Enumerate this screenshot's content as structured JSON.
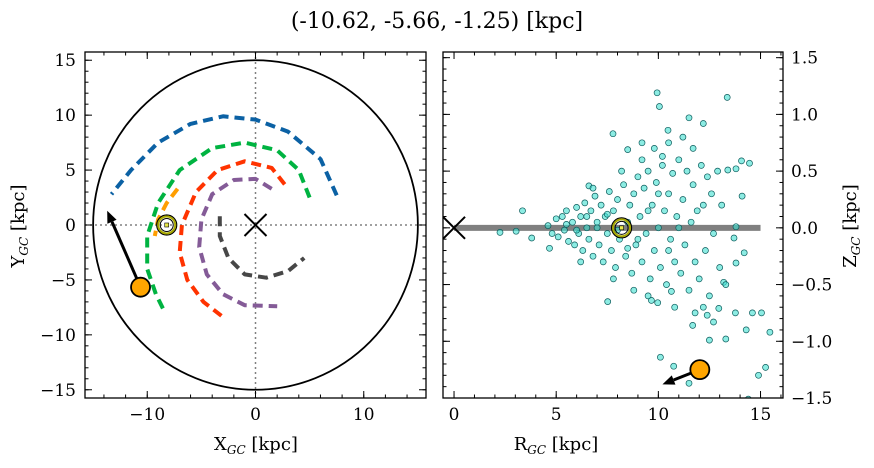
{
  "title": "(-10.62, -5.66, -1.25) [kpc]",
  "chart_data": [
    {
      "type": "line",
      "panel": "left",
      "xlabel": {
        "main": "X",
        "sub": "GC",
        "unit": " [kpc]"
      },
      "ylabel": {
        "main": "Y",
        "sub": "GC",
        "unit": " [kpc]"
      },
      "xlim": [
        -15.75,
        15.75
      ],
      "ylim": [
        -15.75,
        15.75
      ],
      "xticks": [
        -10,
        0,
        10
      ],
      "yticks": [
        -15,
        -10,
        -5,
        0,
        5,
        10,
        15
      ],
      "xtick_labels": [
        "−10",
        "0",
        "10"
      ],
      "ytick_labels": [
        "−15",
        "−10",
        "−5",
        "0",
        "5",
        "10",
        "15"
      ],
      "boundary_circle_radius": 15,
      "galactic_center": [
        0,
        0
      ],
      "sun": [
        -8.2,
        0
      ],
      "target": [
        -10.62,
        -5.66
      ],
      "velocity_arrow_tip": [
        -13.7,
        1.3
      ],
      "dashed_curves": [
        {
          "color": "#0b61a4",
          "points": [
            [
              7.5,
              2.7
            ],
            [
              6,
              6
            ],
            [
              3,
              8.5
            ],
            [
              0,
              9.6
            ],
            [
              -3,
              9.9
            ],
            [
              -6,
              9.2
            ],
            [
              -9,
              7.5
            ],
            [
              -11.5,
              5
            ],
            [
              -13.3,
              2.8
            ]
          ]
        },
        {
          "color": "#00b341",
          "points": [
            [
              5,
              2.5
            ],
            [
              4,
              5
            ],
            [
              2,
              6.8
            ],
            [
              -1,
              7.5
            ],
            [
              -4,
              7
            ],
            [
              -7,
              5
            ],
            [
              -9,
              2
            ],
            [
              -10,
              -1
            ],
            [
              -10,
              -4
            ],
            [
              -9.2,
              -6.3
            ],
            [
              -8.5,
              -7.7
            ]
          ]
        },
        {
          "color": "#ff9e00",
          "points": [
            [
              -7.2,
              3.3
            ],
            [
              -8.2,
              2
            ],
            [
              -9,
              0.5
            ],
            [
              -9.3,
              -1
            ]
          ]
        },
        {
          "color": "#ff3300",
          "points": [
            [
              2.7,
              3.7
            ],
            [
              1.5,
              5.2
            ],
            [
              -1,
              5.8
            ],
            [
              -3.5,
              5
            ],
            [
              -5.5,
              3
            ],
            [
              -6.8,
              0
            ],
            [
              -7,
              -2.5
            ],
            [
              -6.3,
              -5
            ],
            [
              -4.8,
              -7
            ],
            [
              -3.1,
              -8.3
            ]
          ]
        },
        {
          "color": "#845b97",
          "points": [
            [
              1.5,
              3.3
            ],
            [
              0,
              4.2
            ],
            [
              -2,
              4.1
            ],
            [
              -4,
              2.8
            ],
            [
              -5,
              0.5
            ],
            [
              -5.2,
              -2
            ],
            [
              -4.5,
              -4.5
            ],
            [
              -3,
              -6.3
            ],
            [
              -1,
              -7.3
            ],
            [
              2,
              -7.4
            ]
          ]
        },
        {
          "color": "#474747",
          "points": [
            [
              -3.3,
              0.8
            ],
            [
              -3.3,
              -1
            ],
            [
              -2.5,
              -3
            ],
            [
              -1,
              -4.5
            ],
            [
              1,
              -4.8
            ],
            [
              3,
              -4.2
            ],
            [
              4.5,
              -3
            ]
          ]
        }
      ]
    },
    {
      "type": "scatter",
      "panel": "right",
      "xlabel": {
        "main": "R",
        "sub": "GC",
        "unit": " [kpc]"
      },
      "ylabel": {
        "main": "Z",
        "sub": "GC",
        "unit": " [kpc]"
      },
      "xlim": [
        -0.54,
        16.1
      ],
      "ylim": [
        -1.5,
        1.55
      ],
      "xticks": [
        0,
        5,
        10,
        15
      ],
      "yticks": [
        -1.5,
        -1.0,
        -0.5,
        0.0,
        0.5,
        1.0,
        1.5
      ],
      "xtick_labels": [
        "0",
        "5",
        "10",
        "15"
      ],
      "ytick_labels": [
        "−1.5",
        "−1.0",
        "−0.5",
        "0.0",
        "0.5",
        "1.0",
        "1.5"
      ],
      "galactic_center": [
        0,
        0
      ],
      "disk_line": [
        [
          0,
          0
        ],
        [
          15,
          0
        ]
      ],
      "sun": [
        8.2,
        0
      ],
      "target": [
        12.03,
        -1.25
      ],
      "velocity_arrow_tip": [
        10.2,
        -1.38
      ],
      "point_color": "#40e0d0",
      "points": [
        [
          9.94,
          1.19
        ],
        [
          10.05,
          1.07
        ],
        [
          13.37,
          1.15
        ],
        [
          11.5,
          0.97
        ],
        [
          12.2,
          0.92
        ],
        [
          7.78,
          0.83
        ],
        [
          10.47,
          0.86
        ],
        [
          9.2,
          0.75
        ],
        [
          8.5,
          0.69
        ],
        [
          14.07,
          0.59
        ],
        [
          14.46,
          0.57
        ],
        [
          10.2,
          0.63
        ],
        [
          11.7,
          0.7
        ],
        [
          6.6,
          0.37
        ],
        [
          3.35,
          0.15
        ],
        [
          2.25,
          -0.04
        ],
        [
          3.04,
          -0.03
        ],
        [
          3.8,
          -0.09
        ],
        [
          4.67,
          -0.18
        ],
        [
          7.52,
          -0.65
        ],
        [
          9.66,
          -0.64
        ],
        [
          9.97,
          -0.66
        ],
        [
          10.64,
          -0.56
        ],
        [
          11.68,
          -0.86
        ],
        [
          12.39,
          -0.77
        ],
        [
          12.96,
          -0.71
        ],
        [
          13.77,
          -0.75
        ],
        [
          14.6,
          -0.75
        ],
        [
          15.05,
          -0.75
        ],
        [
          12.7,
          -0.83
        ],
        [
          12.5,
          -0.99
        ],
        [
          13.3,
          -0.98
        ],
        [
          14.3,
          -0.9
        ],
        [
          15.46,
          -0.92
        ],
        [
          10.1,
          -1.14
        ],
        [
          10.75,
          -1.22
        ],
        [
          11.5,
          -1.37
        ],
        [
          14.9,
          -1.3
        ],
        [
          15.25,
          -1.23
        ],
        [
          14.4,
          -1.51
        ],
        [
          13.2,
          -0.48
        ],
        [
          13.4,
          0.51
        ],
        [
          13.8,
          0.52
        ],
        [
          14.1,
          0.28
        ],
        [
          14.2,
          -0.22
        ],
        [
          13.8,
          0.01
        ],
        [
          13.7,
          -0.09
        ],
        [
          13.8,
          -0.31
        ],
        [
          4.6,
          0.02
        ],
        [
          4.8,
          -0.05
        ],
        [
          5.0,
          0.08
        ],
        [
          5.1,
          -0.08
        ],
        [
          5.3,
          0.1
        ],
        [
          5.4,
          -0.02
        ],
        [
          5.5,
          0.15
        ],
        [
          5.6,
          -0.12
        ],
        [
          5.8,
          0.05
        ],
        [
          5.9,
          -0.15
        ],
        [
          6.0,
          0.18
        ],
        [
          6.1,
          -0.05
        ],
        [
          6.2,
          0.1
        ],
        [
          6.3,
          -0.2
        ],
        [
          6.4,
          0.22
        ],
        [
          6.5,
          0.0
        ],
        [
          6.6,
          -0.1
        ],
        [
          6.7,
          0.15
        ],
        [
          6.8,
          -0.25
        ],
        [
          6.9,
          0.28
        ],
        [
          7.0,
          0.05
        ],
        [
          7.1,
          -0.15
        ],
        [
          7.2,
          0.2
        ],
        [
          7.3,
          -0.3
        ],
        [
          7.4,
          0.1
        ],
        [
          7.5,
          -0.05
        ],
        [
          7.6,
          0.32
        ],
        [
          7.7,
          -0.2
        ],
        [
          7.8,
          0.15
        ],
        [
          7.9,
          -0.35
        ],
        [
          8.0,
          0.25
        ],
        [
          8.1,
          -0.1
        ],
        [
          8.3,
          0.38
        ],
        [
          8.4,
          -0.25
        ],
        [
          8.5,
          0.05
        ],
        [
          8.6,
          0.2
        ],
        [
          8.7,
          -0.4
        ],
        [
          8.8,
          0.3
        ],
        [
          8.9,
          -0.15
        ],
        [
          9.0,
          0.45
        ],
        [
          9.1,
          0.1
        ],
        [
          9.2,
          -0.3
        ],
        [
          9.3,
          0.35
        ],
        [
          9.4,
          -0.05
        ],
        [
          9.5,
          0.5
        ],
        [
          9.6,
          -0.45
        ],
        [
          9.7,
          0.2
        ],
        [
          9.8,
          -0.2
        ],
        [
          9.9,
          0.4
        ],
        [
          10.0,
          0.0
        ],
        [
          10.1,
          -0.35
        ],
        [
          10.2,
          0.55
        ],
        [
          10.3,
          0.15
        ],
        [
          10.4,
          -0.5
        ],
        [
          10.5,
          0.3
        ],
        [
          10.6,
          -0.1
        ],
        [
          10.7,
          0.48
        ],
        [
          10.8,
          -0.3
        ],
        [
          10.9,
          0.1
        ],
        [
          11.0,
          0.6
        ],
        [
          11.1,
          -0.4
        ],
        [
          11.2,
          0.25
        ],
        [
          11.3,
          -0.15
        ],
        [
          11.4,
          0.5
        ],
        [
          11.5,
          -0.55
        ],
        [
          11.6,
          0.05
        ],
        [
          11.7,
          0.38
        ],
        [
          11.8,
          -0.3
        ],
        [
          11.9,
          0.15
        ],
        [
          12.0,
          -0.45
        ],
        [
          12.1,
          0.55
        ],
        [
          12.2,
          0.2
        ],
        [
          12.3,
          -0.2
        ],
        [
          12.4,
          0.45
        ],
        [
          12.5,
          -0.6
        ],
        [
          12.6,
          0.3
        ],
        [
          12.7,
          -0.05
        ],
        [
          12.9,
          0.5
        ],
        [
          13.0,
          -0.35
        ],
        [
          13.1,
          0.2
        ],
        [
          13.3,
          -0.5
        ],
        [
          7.0,
          0.0
        ],
        [
          7.5,
          0.12
        ],
        [
          8.0,
          -0.02
        ],
        [
          8.5,
          -0.18
        ],
        [
          9.0,
          -0.1
        ],
        [
          9.5,
          0.15
        ],
        [
          10.0,
          0.3
        ],
        [
          10.5,
          -0.2
        ],
        [
          11.0,
          0.0
        ],
        [
          6.0,
          -0.02
        ],
        [
          6.5,
          0.1
        ],
        [
          5.5,
          0.03
        ],
        [
          9.2,
          0.6
        ],
        [
          9.8,
          0.7
        ],
        [
          10.5,
          0.75
        ],
        [
          11.2,
          0.8
        ],
        [
          10.8,
          -0.7
        ],
        [
          9.5,
          -0.6
        ],
        [
          8.8,
          -0.55
        ],
        [
          11.8,
          -0.75
        ],
        [
          12.2,
          -0.7
        ],
        [
          8.2,
          0.5
        ],
        [
          7.8,
          -0.45
        ],
        [
          6.8,
          0.35
        ],
        [
          6.2,
          -0.3
        ]
      ]
    }
  ],
  "colors": {
    "sun_ring": "#a8a800",
    "sun_fill": "#e8e84a",
    "target_fill": "#ffa500",
    "disk_line": "#808080",
    "grid_dotted": "#808080"
  }
}
